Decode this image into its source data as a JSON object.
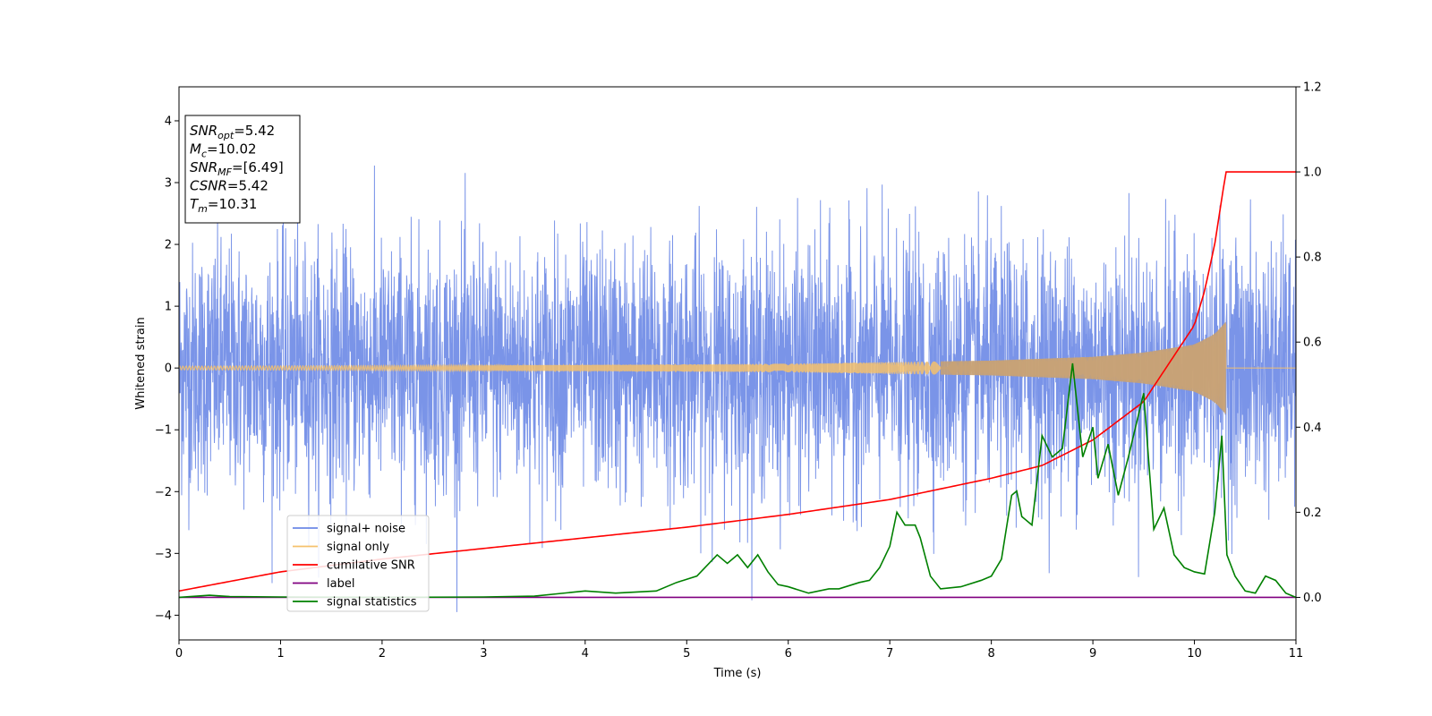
{
  "chart_data": {
    "type": "line",
    "xlabel": "Time (s)",
    "ylabel": "Whitened strain",
    "xlim": [
      0,
      11
    ],
    "ylim": [
      -4.4,
      4.55
    ],
    "y2lim": [
      -0.1,
      1.2
    ],
    "xticks": [
      "0",
      "1",
      "2",
      "3",
      "4",
      "5",
      "6",
      "7",
      "8",
      "9",
      "10",
      "11"
    ],
    "yticks": [
      "−4",
      "−3",
      "−2",
      "−1",
      "0",
      "1",
      "2",
      "3",
      "4"
    ],
    "y2ticks": [
      "0.0",
      "0.2",
      "0.4",
      "0.6",
      "0.8",
      "1.0",
      "1.2"
    ],
    "grid": false,
    "legend_position": "lower-left",
    "colors": {
      "noise": "#6b88e6",
      "signal": "#f5c16c",
      "csnr": "#ff0000",
      "label": "#800080",
      "stat": "#008000"
    },
    "annotation": {
      "lines": [
        {
          "sym": "SNR",
          "sub": "opt",
          "rest": "=5.42"
        },
        {
          "sym": "M",
          "sub": "c",
          "rest": "=10.02"
        },
        {
          "sym": "SNR",
          "sub": "MF",
          "rest": "=[6.49]"
        },
        {
          "sym": "CSNR",
          "sub": "",
          "rest": "=5.42"
        },
        {
          "sym": "T",
          "sub": "m",
          "rest": "=10.31"
        }
      ]
    },
    "series": [
      {
        "name": "signal+ noise",
        "axis": "left",
        "note": "dense whitened noise, roughly ±2.5 with spikes to ±4",
        "envelope": {
          "upper": 2.3,
          "lower": -2.3,
          "max": 4.15,
          "min": -3.95
        }
      },
      {
        "name": "signal only",
        "axis": "left",
        "chirp_end_time": 10.31,
        "amplitude": {
          "x": [
            0,
            2,
            4,
            6,
            8,
            9,
            9.5,
            10,
            10.2,
            10.31
          ],
          "y": [
            0.03,
            0.04,
            0.05,
            0.07,
            0.12,
            0.18,
            0.25,
            0.38,
            0.55,
            0.75
          ]
        }
      },
      {
        "name": "cumilative SNR",
        "axis": "right",
        "x": [
          0,
          1,
          2,
          3,
          4,
          5,
          6,
          7,
          8,
          8.5,
          9,
          9.5,
          10,
          10.1,
          10.2,
          10.31,
          11
        ],
        "y": [
          0.015,
          0.06,
          0.09,
          0.115,
          0.14,
          0.165,
          0.195,
          0.23,
          0.28,
          0.31,
          0.37,
          0.46,
          0.64,
          0.72,
          0.83,
          1.0,
          1.0
        ]
      },
      {
        "name": "label",
        "axis": "right",
        "x": [
          0,
          11
        ],
        "y": [
          0.0,
          0.0
        ]
      },
      {
        "name": "signal statistics",
        "axis": "right",
        "x": [
          0,
          0.3,
          0.5,
          1,
          2,
          3,
          3.5,
          4,
          4.3,
          4.7,
          4.9,
          5.1,
          5.3,
          5.4,
          5.5,
          5.6,
          5.7,
          5.8,
          5.9,
          6.0,
          6.2,
          6.4,
          6.5,
          6.7,
          6.8,
          6.9,
          7.0,
          7.07,
          7.15,
          7.25,
          7.3,
          7.4,
          7.5,
          7.7,
          7.9,
          8.0,
          8.1,
          8.2,
          8.25,
          8.3,
          8.4,
          8.5,
          8.6,
          8.7,
          8.8,
          8.9,
          9.0,
          9.05,
          9.15,
          9.25,
          9.35,
          9.5,
          9.6,
          9.7,
          9.8,
          9.9,
          10.0,
          10.1,
          10.2,
          10.27,
          10.32,
          10.4,
          10.5,
          10.6,
          10.7,
          10.8,
          10.9,
          11.0
        ],
        "y": [
          0.0,
          0.005,
          0.002,
          0.001,
          0.0,
          0.001,
          0.003,
          0.015,
          0.01,
          0.015,
          0.035,
          0.05,
          0.1,
          0.08,
          0.1,
          0.07,
          0.1,
          0.06,
          0.03,
          0.025,
          0.01,
          0.02,
          0.02,
          0.035,
          0.04,
          0.07,
          0.12,
          0.2,
          0.17,
          0.17,
          0.14,
          0.05,
          0.02,
          0.025,
          0.04,
          0.05,
          0.09,
          0.24,
          0.25,
          0.19,
          0.17,
          0.38,
          0.33,
          0.35,
          0.55,
          0.33,
          0.4,
          0.28,
          0.36,
          0.24,
          0.33,
          0.48,
          0.16,
          0.21,
          0.1,
          0.07,
          0.06,
          0.055,
          0.2,
          0.38,
          0.1,
          0.05,
          0.015,
          0.01,
          0.05,
          0.04,
          0.01,
          0.0
        ]
      }
    ]
  }
}
